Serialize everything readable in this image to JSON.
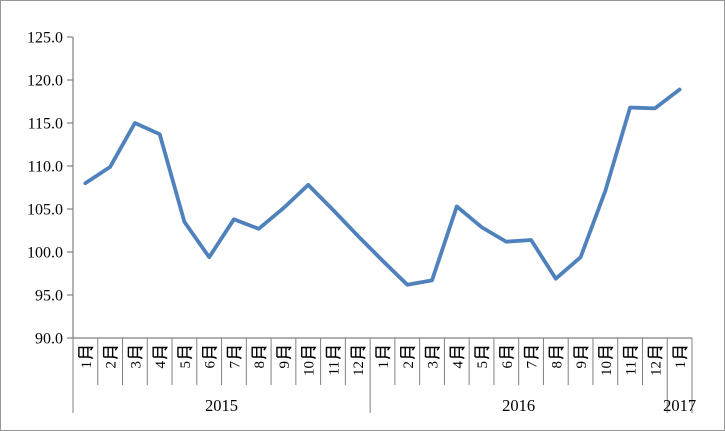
{
  "chart_data": {
    "type": "line",
    "title": "",
    "legend": "none",
    "grid": false,
    "categories": [
      "1月",
      "2月",
      "3月",
      "4月",
      "5月",
      "6月",
      "7月",
      "8月",
      "9月",
      "10月",
      "11月",
      "12月",
      "1月",
      "2月",
      "3月",
      "4月",
      "5月",
      "6月",
      "7月",
      "8月",
      "9月",
      "10月",
      "11月",
      "12月",
      "1月"
    ],
    "year_groups": [
      {
        "label": "2015",
        "months": 12
      },
      {
        "label": "2016",
        "months": 12
      },
      {
        "label": "2017",
        "months": 1
      }
    ],
    "series": [
      {
        "name": "monthly-index",
        "color": "#4F81BD",
        "values": [
          108.0,
          109.9,
          115.0,
          113.7,
          103.5,
          99.4,
          103.8,
          102.7,
          105.1,
          107.8,
          104.9,
          101.9,
          99.0,
          96.2,
          96.7,
          105.3,
          102.9,
          101.2,
          101.4,
          96.9,
          99.4,
          107.1,
          116.8,
          116.7,
          118.9
        ]
      }
    ],
    "y_axis": {
      "min": 90,
      "max": 125,
      "step": 5,
      "tick_labels": [
        "90.0",
        "95.0",
        "100.0",
        "105.0",
        "110.0",
        "115.0",
        "120.0",
        "125.0"
      ]
    },
    "colors": {
      "line": "#4F81BD",
      "axis": "#808080",
      "separator": "#808080",
      "text": "#000000",
      "chart_border": "#979797",
      "background": "#FFFFFF"
    }
  }
}
